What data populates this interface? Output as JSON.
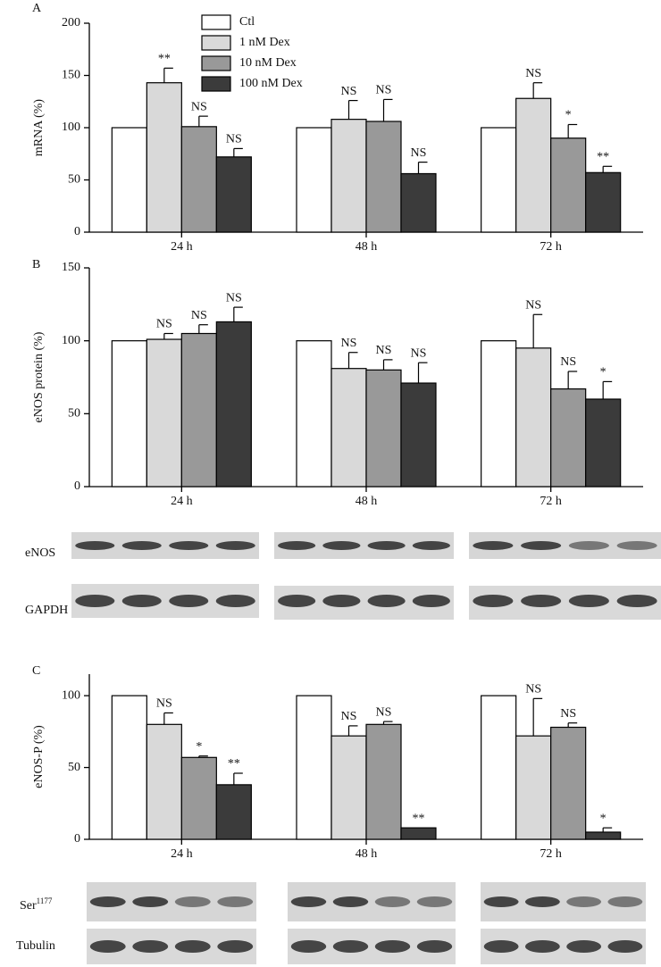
{
  "chart_data": [
    {
      "type": "bar",
      "panel": "A",
      "ylabel": "mRNA (%)",
      "categories": [
        "24 h",
        "48 h",
        "72 h"
      ],
      "ylim": [
        0,
        200
      ],
      "yticks": [
        0,
        50,
        100,
        150,
        200
      ],
      "series": [
        {
          "name": "Ctl",
          "color": "#ffffff",
          "values": [
            100,
            100,
            100
          ],
          "errors": [
            0,
            0,
            0
          ],
          "annotations": [
            null,
            null,
            null
          ]
        },
        {
          "name": "1 nM Dex",
          "color": "#d9d9d9",
          "values": [
            143,
            108,
            128
          ],
          "errors": [
            14,
            18,
            15
          ],
          "annotations": [
            "**",
            "NS",
            "NS"
          ]
        },
        {
          "name": "10 nM Dex",
          "color": "#999999",
          "values": [
            101,
            106,
            90
          ],
          "errors": [
            10,
            21,
            13
          ],
          "annotations": [
            "NS",
            "NS",
            "*"
          ]
        },
        {
          "name": "100 nM Dex",
          "color": "#3b3b3b",
          "values": [
            72,
            56,
            57
          ],
          "errors": [
            8,
            11,
            6
          ],
          "annotations": [
            "NS",
            "NS",
            "**"
          ]
        }
      ]
    },
    {
      "type": "bar",
      "panel": "B",
      "ylabel": "eNOS protein (%)",
      "categories": [
        "24 h",
        "48 h",
        "72 h"
      ],
      "ylim": [
        0,
        150
      ],
      "yticks": [
        0,
        50,
        100,
        150
      ],
      "series": [
        {
          "color": "#ffffff",
          "values": [
            100,
            100,
            100
          ],
          "errors": [
            0,
            0,
            0
          ],
          "annotations": [
            null,
            null,
            null
          ]
        },
        {
          "color": "#d9d9d9",
          "values": [
            101,
            81,
            95
          ],
          "errors": [
            4,
            11,
            23
          ],
          "annotations": [
            "NS",
            "NS",
            "NS"
          ]
        },
        {
          "color": "#999999",
          "values": [
            105,
            80,
            67
          ],
          "errors": [
            6,
            7,
            12
          ],
          "annotations": [
            "NS",
            "NS",
            "NS"
          ]
        },
        {
          "color": "#3b3b3b",
          "values": [
            113,
            71,
            60
          ],
          "errors": [
            10,
            14,
            12
          ],
          "annotations": [
            "NS",
            "NS",
            "*"
          ]
        }
      ]
    },
    {
      "type": "bar",
      "panel": "C",
      "ylabel": "eNOS-P (%)",
      "categories": [
        "24 h",
        "48 h",
        "72 h"
      ],
      "ylim": [
        0,
        115
      ],
      "yticks": [
        0,
        50,
        100
      ],
      "series": [
        {
          "color": "#ffffff",
          "values": [
            100,
            100,
            100
          ],
          "errors": [
            0,
            0,
            0
          ],
          "annotations": [
            null,
            null,
            null
          ]
        },
        {
          "color": "#d9d9d9",
          "values": [
            80,
            72,
            72
          ],
          "errors": [
            8,
            7,
            26
          ],
          "annotations": [
            "NS",
            "NS",
            "NS"
          ]
        },
        {
          "color": "#999999",
          "values": [
            57,
            80,
            78
          ],
          "errors": [
            1,
            2,
            3
          ],
          "annotations": [
            "*",
            "NS",
            "NS"
          ]
        },
        {
          "color": "#3b3b3b",
          "values": [
            38,
            8,
            5
          ],
          "errors": [
            8,
            0,
            3
          ],
          "annotations": [
            "**",
            "**",
            "*"
          ]
        }
      ]
    }
  ],
  "blots": [
    {
      "label": "eNOS"
    },
    {
      "label": "GAPDH"
    },
    {
      "label": "Ser",
      "sup": "1177"
    },
    {
      "label": "Tubulin"
    }
  ]
}
